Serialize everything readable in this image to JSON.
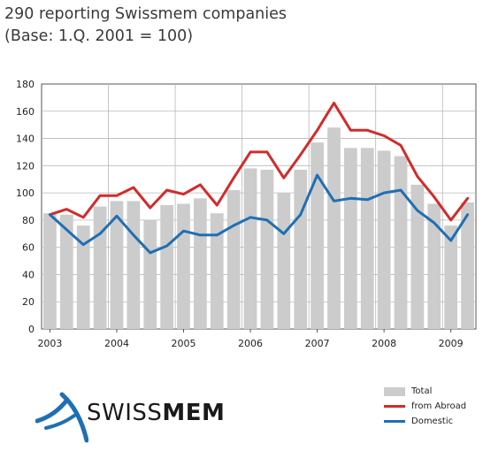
{
  "title_lines": [
    "290 reporting Swissmem companies",
    "(Base: 1.Q. 2001 = 100)"
  ],
  "chart_data": {
    "type": "bar+line",
    "title": "290 reporting Swissmem companies",
    "subtitle": "(Base: 1.Q. 2001 = 100)",
    "xlabel": "",
    "ylabel": "",
    "ylim": [
      0,
      180
    ],
    "yticks": [
      0,
      20,
      40,
      60,
      80,
      100,
      120,
      140,
      160,
      180
    ],
    "year_labels": [
      "2003",
      "2004",
      "2005",
      "2006",
      "2007",
      "2008",
      "2009"
    ],
    "x": [
      "2003 Q1",
      "2003 Q2",
      "2003 Q3",
      "2003 Q4",
      "2004 Q1",
      "2004 Q2",
      "2004 Q3",
      "2004 Q4",
      "2005 Q1",
      "2005 Q2",
      "2005 Q3",
      "2005 Q4",
      "2006 Q1",
      "2006 Q2",
      "2006 Q3",
      "2006 Q4",
      "2007 Q1",
      "2007 Q2",
      "2007 Q3",
      "2007 Q4",
      "2008 Q1",
      "2008 Q2",
      "2008 Q3",
      "2008 Q4",
      "2009 Q1",
      "2009 Q2"
    ],
    "grid": true,
    "legend_position": "bottom-right",
    "series": [
      {
        "name": "Total",
        "kind": "bar",
        "color": "#cccccc",
        "values": [
          85,
          84,
          76,
          90,
          94,
          94,
          80,
          91,
          92,
          96,
          85,
          102,
          118,
          117,
          100,
          117,
          137,
          148,
          133,
          133,
          131,
          127,
          106,
          92,
          76,
          93
        ]
      },
      {
        "name": "from Abroad",
        "kind": "line",
        "color": "#d22b2b",
        "values": [
          84,
          88,
          82,
          98,
          98,
          104,
          89,
          102,
          99,
          106,
          91,
          111,
          130,
          130,
          111,
          128,
          146,
          166,
          146,
          146,
          142,
          135,
          112,
          97,
          80,
          96
        ]
      },
      {
        "name": "Domestic",
        "kind": "line",
        "color": "#1f6fb4",
        "values": [
          84,
          73,
          62,
          70,
          83,
          69,
          56,
          61,
          72,
          69,
          69,
          76,
          82,
          80,
          70,
          84,
          113,
          94,
          96,
          95,
          100,
          102,
          87,
          78,
          65,
          84
        ]
      }
    ]
  },
  "legend": {
    "total": "Total",
    "abroad": "from Abroad",
    "domestic": "Domestic"
  },
  "logo": {
    "text_regular": "SWISS",
    "text_bold": "MEM"
  }
}
